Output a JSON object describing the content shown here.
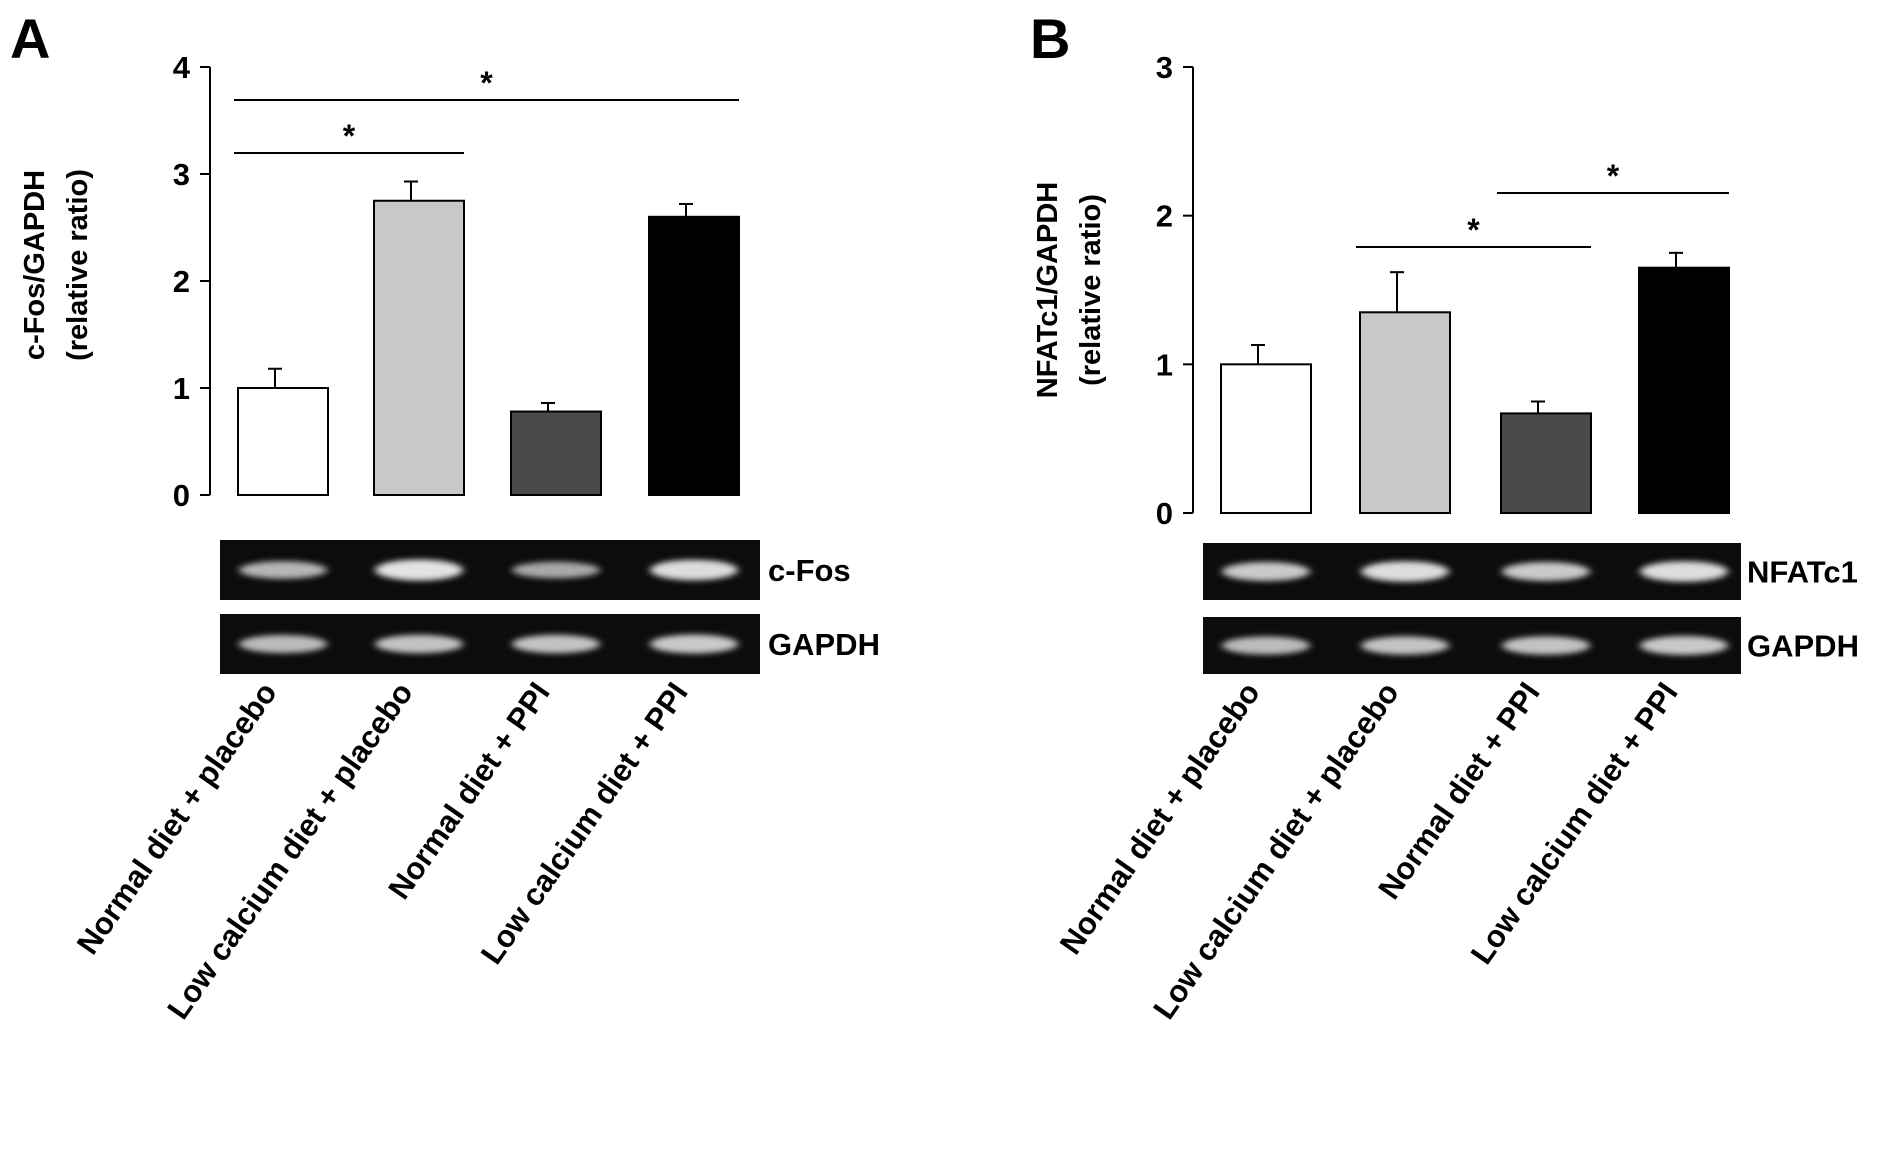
{
  "chart_data": [
    {
      "type": "bar",
      "panel_label": "A",
      "title": "",
      "xlabel": "",
      "ylabel_lines": [
        "c-Fos/GAPDH",
        "(relative ratio)"
      ],
      "ylim": [
        0,
        4
      ],
      "yticks": [
        "0",
        "1",
        "2",
        "3",
        "4"
      ],
      "categories": [
        "Normal diet + placebo",
        "Low calcium diet + placebo",
        "Normal diet + PPI",
        "Low calcium diet + PPI"
      ],
      "values": [
        1.0,
        2.75,
        0.78,
        2.6
      ],
      "errors": [
        0.18,
        0.18,
        0.08,
        0.12
      ],
      "bar_colors": [
        "#ffffff",
        "#c8c8c8",
        "#4a4a4a",
        "#000000"
      ],
      "significance": [
        {
          "from": "Normal diet + placebo",
          "to": "Low calcium diet + PPI",
          "label": "*"
        },
        {
          "from": "Normal diet + placebo",
          "to": "Low calcium diet + placebo",
          "label": "*"
        }
      ],
      "blots": [
        {
          "label": "c-Fos",
          "band_intensity": [
            0.55,
            0.9,
            0.45,
            0.85
          ]
        },
        {
          "label": "GAPDH",
          "band_intensity": [
            0.6,
            0.65,
            0.65,
            0.7
          ]
        }
      ]
    },
    {
      "type": "bar",
      "panel_label": "B",
      "title": "",
      "xlabel": "",
      "ylabel_lines": [
        "NFATc1/GAPDH",
        "(relative ratio)"
      ],
      "ylim": [
        0,
        3
      ],
      "yticks": [
        "0",
        "1",
        "2",
        "3"
      ],
      "categories": [
        "Normal diet + placebo",
        "Low calcium diet + placebo",
        "Normal diet + PPI",
        "Low calcium diet + PPI"
      ],
      "values": [
        1.0,
        1.35,
        0.67,
        1.65
      ],
      "errors": [
        0.13,
        0.27,
        0.08,
        0.1
      ],
      "bar_colors": [
        "#ffffff",
        "#c8c8c8",
        "#4a4a4a",
        "#000000"
      ],
      "significance": [
        {
          "from": "Normal diet + PPI",
          "to": "Low calcium diet + PPI",
          "label": "*"
        },
        {
          "from": "Low calcium diet + placebo",
          "to": "Normal diet + PPI",
          "label": "*"
        }
      ],
      "blots": [
        {
          "label": "NFATc1",
          "band_intensity": [
            0.7,
            0.85,
            0.7,
            0.85
          ]
        },
        {
          "label": "GAPDH",
          "band_intensity": [
            0.6,
            0.65,
            0.65,
            0.7
          ]
        }
      ]
    }
  ]
}
